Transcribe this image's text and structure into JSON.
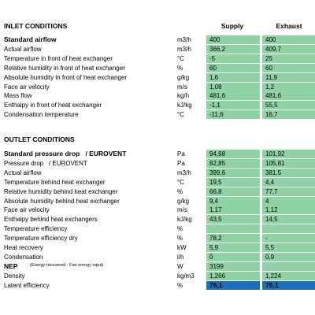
{
  "columns": {
    "supply": "Supply",
    "exhaust": "Exhaust"
  },
  "sections": [
    {
      "title": "INLET CONDITIONS",
      "rows": [
        {
          "label": "Standard airflow",
          "unit": "m3/h",
          "supply": "400",
          "exhaust": "400",
          "bold": true
        },
        {
          "label": "Actual airflow",
          "unit": "m3/h",
          "supply": "366,2",
          "exhaust": "409,7"
        },
        {
          "label": "Temperature in front of heat exchanger",
          "unit": "°C",
          "supply": "-5",
          "exhaust": "25"
        },
        {
          "label": "Relative humidity in front of heat exchanger",
          "unit": "%",
          "supply": "60",
          "exhaust": "60"
        },
        {
          "label": "Absolute humidity in front of heat exchanger",
          "unit": "g/kg",
          "supply": "1,6",
          "exhaust": "11,9"
        },
        {
          "label": "Face air velocity",
          "unit": "m/s",
          "supply": "1,08",
          "exhaust": "1,2"
        },
        {
          "label": "Mass flow",
          "unit": "kg/h",
          "supply": "481,6",
          "exhaust": "481,6"
        },
        {
          "label": "Enthalpy in front of heat exchanger",
          "unit": "kJ/kg",
          "supply": "-1,1",
          "exhaust": "55,5"
        },
        {
          "label": "Condensation temperature",
          "unit": "°C",
          "supply": "-11,6",
          "exhaust": "16,7"
        }
      ]
    },
    {
      "title": "OUTLET CONDITIONS",
      "rows": [
        {
          "label": "Standard pressure drop   / EUROVENT",
          "unit": "Pa",
          "supply": "94,98",
          "exhaust": "101,92",
          "bold": true
        },
        {
          "label": "Pressure drop   / EUROVENT",
          "unit": "Pa",
          "supply": "82,85",
          "exhaust": "105,81"
        },
        {
          "label": "Actual airflow",
          "unit": "m3/h",
          "supply": "399,6",
          "exhaust": "381,5"
        },
        {
          "label": "Temperature behind heat exchanger",
          "unit": "°C",
          "supply": "19,5",
          "exhaust": "4,4"
        },
        {
          "label": "Relative humidity behind heat exchanger",
          "unit": "%",
          "supply": "66,8",
          "exhaust": "77,7"
        },
        {
          "label": "Absolute humidity behind heat exchanger",
          "unit": "g/kg",
          "supply": "9,4",
          "exhaust": "4"
        },
        {
          "label": "Face air velocity",
          "unit": "m/s",
          "supply": "1,17",
          "exhaust": "1,12"
        },
        {
          "label": "Enthalpy behind heat exchangers",
          "unit": "kJ/kg",
          "supply": "43,5",
          "exhaust": "14,5"
        },
        {
          "label": "Temperature efficiency",
          "unit": "%",
          "supply": null,
          "exhaust": null
        },
        {
          "label": "Temperature efficiency dry",
          "unit": "%",
          "supply": "78,2",
          "exhaust": "-"
        },
        {
          "label": "Heat recovery",
          "unit": "kW",
          "supply": "5,9",
          "exhaust": "5,5"
        },
        {
          "label": "Condensation",
          "unit": "l/h",
          "supply": "0",
          "exhaust": "0,9"
        },
        {
          "label": "NEP",
          "note": "(Energy recovered - Fan energy input)",
          "unit": "W",
          "supply": "3199",
          "exhaust": null,
          "bold": true
        },
        {
          "label": "Density",
          "unit": "kg/m3",
          "supply": "1,266",
          "exhaust": "1,224"
        },
        {
          "label": "Latent efficiency",
          "unit": "%",
          "supply": "76,1",
          "exhaust": "76,1",
          "highlight": true
        }
      ]
    }
  ]
}
